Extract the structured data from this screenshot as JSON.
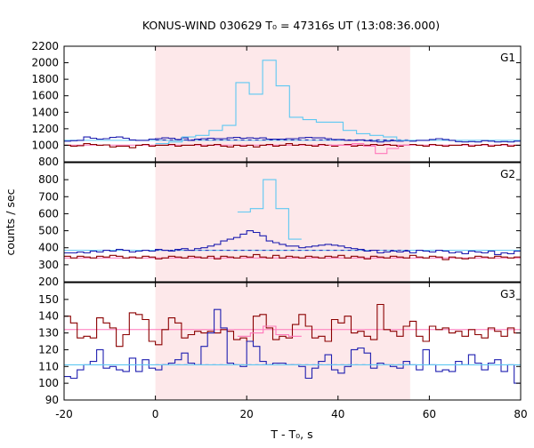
{
  "title": "KONUS-WIND 030629 T₀ = 47316s UT (13:08:36.000)",
  "ylabel": "counts / sec",
  "xlabel": "T - T₀, s",
  "colors": {
    "background_window": "#fde8ea",
    "dark_red": "#8b0000",
    "pink": "#ff77bb",
    "blue": "#1f1fb0",
    "light_blue": "#5ec8f2",
    "frame": "#000000"
  },
  "chart_data": [
    {
      "type": "line",
      "panel": "G1",
      "label": "G1",
      "xlim": [
        -20,
        80
      ],
      "ylim": [
        800,
        2200
      ],
      "yticks": [
        800,
        1000,
        1200,
        1400,
        1600,
        1800,
        2000,
        2200
      ],
      "xticks": [
        -20,
        0,
        20,
        40,
        60,
        80
      ],
      "shaded_x": [
        0,
        55.8
      ],
      "bin_width": 2.944,
      "background_levels": {
        "G1_G2": 1060,
        "G2_dashed": 1065,
        "G1": 1002
      },
      "series": [
        {
          "color": "blue",
          "values": [
            1050,
            1055,
            1060,
            1100,
            1085,
            1075,
            1080,
            1095,
            1100,
            1085,
            1065,
            1060,
            1060,
            1075,
            1080,
            1090,
            1085,
            1070,
            1090,
            1060,
            1075,
            1080,
            1085,
            1080,
            1080,
            1090,
            1095,
            1085,
            1090,
            1085,
            1090,
            1075,
            1075,
            1075,
            1080,
            1080,
            1090,
            1095,
            1090,
            1090,
            1080,
            1070,
            1070,
            1060,
            1060,
            1065,
            1055,
            1050,
            1040,
            1050,
            1055,
            1050,
            1055,
            1050,
            1060,
            1060,
            1070,
            1080,
            1070,
            1060,
            1045,
            1040,
            1045,
            1040,
            1055,
            1050,
            1040,
            1045,
            1040,
            1050
          ]
        },
        {
          "color": "light_blue",
          "x_start": 0,
          "x_end": 55.8,
          "values": [
            1020,
            1040,
            1100,
            1120,
            1180,
            1240,
            1760,
            1620,
            2030,
            1720,
            1340,
            1310,
            1280,
            1280,
            1180,
            1140,
            1120,
            1100,
            1060
          ]
        },
        {
          "color": "dark_red",
          "values": [
            1000,
            990,
            995,
            1020,
            1010,
            1000,
            1005,
            980,
            990,
            990,
            970,
            1000,
            1010,
            990,
            1000,
            1000,
            1010,
            990,
            1000,
            1000,
            1010,
            990,
            1000,
            1010,
            990,
            980,
            1000,
            990,
            1000,
            980,
            1000,
            1010,
            990,
            1000,
            1020,
            1000,
            1010,
            1000,
            990,
            1010,
            1000,
            990,
            1000,
            1010,
            990,
            1000,
            1000,
            1010,
            1000,
            1010,
            1000,
            990,
            1000,
            1010,
            1000,
            990,
            1010,
            1000,
            990,
            1000,
            1000,
            1010,
            990,
            1000,
            1010,
            990,
            1000,
            1010,
            990,
            1000
          ]
        },
        {
          "color": "pink",
          "x_start": 38,
          "x_end": 55.8,
          "values": [
            1000,
            1000,
            1020,
            990,
            900,
            960,
            1000
          ]
        }
      ]
    },
    {
      "type": "line",
      "panel": "G2",
      "label": "G2",
      "xlim": [
        -20,
        80
      ],
      "ylim": [
        200,
        900
      ],
      "yticks": [
        200,
        300,
        400,
        500,
        600,
        700,
        800
      ],
      "xticks": [
        -20,
        0,
        20,
        40,
        60,
        80
      ],
      "shaded_x": [
        0,
        55.8
      ],
      "bin_width": 2.944,
      "background_levels": {
        "blue_dashed": 385,
        "pink": 340
      },
      "series": [
        {
          "color": "blue",
          "values": [
            370,
            370,
            375,
            370,
            380,
            375,
            385,
            380,
            390,
            385,
            375,
            380,
            385,
            380,
            390,
            385,
            380,
            390,
            395,
            385,
            395,
            400,
            410,
            420,
            440,
            450,
            460,
            480,
            500,
            490,
            470,
            440,
            430,
            420,
            410,
            410,
            400,
            405,
            410,
            415,
            420,
            415,
            410,
            400,
            395,
            390,
            380,
            385,
            370,
            375,
            380,
            375,
            380,
            370,
            385,
            380,
            375,
            385,
            380,
            370,
            375,
            365,
            380,
            375,
            370,
            380,
            360,
            370,
            365,
            380
          ]
        },
        {
          "color": "light_blue",
          "x_start": 18,
          "x_end": 32,
          "values": [
            610,
            630,
            800,
            630,
            450
          ]
        },
        {
          "color": "dark_red",
          "values": [
            350,
            340,
            350,
            345,
            340,
            350,
            345,
            355,
            350,
            340,
            345,
            340,
            350,
            345,
            335,
            340,
            350,
            345,
            340,
            350,
            345,
            340,
            350,
            335,
            350,
            345,
            340,
            350,
            345,
            360,
            345,
            340,
            355,
            340,
            350,
            345,
            340,
            350,
            345,
            340,
            350,
            345,
            355,
            340,
            350,
            345,
            335,
            350,
            345,
            340,
            350,
            345,
            340,
            355,
            345,
            340,
            350,
            345,
            330,
            345,
            340,
            335,
            340,
            350,
            345,
            340,
            350,
            345,
            340,
            345
          ]
        }
      ]
    },
    {
      "type": "line",
      "panel": "G3",
      "label": "G3",
      "xlim": [
        -20,
        80
      ],
      "ylim": [
        90,
        160
      ],
      "yticks": [
        90,
        100,
        110,
        120,
        130,
        140,
        150
      ],
      "xticks": [
        -20,
        0,
        20,
        40,
        60,
        80
      ],
      "shaded_x": [
        0,
        55.8
      ],
      "bin_width": 2.944,
      "background_levels": {
        "dark_red": 132,
        "blue_dashed": 111
      },
      "series": [
        {
          "color": "dark_red",
          "values": [
            140,
            136,
            127,
            128,
            127,
            139,
            136,
            133,
            122,
            129,
            142,
            141,
            138,
            125,
            123,
            132,
            139,
            136,
            127,
            129,
            131,
            130,
            131,
            130,
            132,
            131,
            126,
            127,
            125,
            140,
            141,
            133,
            126,
            128,
            127,
            135,
            141,
            134,
            127,
            128,
            125,
            138,
            136,
            140,
            130,
            131,
            128,
            126,
            147,
            132,
            131,
            128,
            134,
            137,
            128,
            125,
            134,
            132,
            133,
            130,
            131,
            128,
            132,
            129,
            127,
            133,
            131,
            128,
            133,
            130
          ]
        },
        {
          "color": "blue",
          "values": [
            104,
            103,
            108,
            111,
            113,
            120,
            109,
            110,
            108,
            107,
            115,
            107,
            114,
            109,
            108,
            111,
            112,
            114,
            118,
            112,
            111,
            122,
            130,
            144,
            133,
            112,
            111,
            110,
            125,
            122,
            113,
            111,
            112,
            112,
            111,
            111,
            110,
            103,
            109,
            113,
            117,
            108,
            106,
            110,
            120,
            121,
            118,
            109,
            112,
            111,
            110,
            109,
            113,
            111,
            108,
            120,
            111,
            107,
            108,
            107,
            113,
            111,
            117,
            112,
            108,
            112,
            114,
            107,
            111,
            100
          ]
        },
        {
          "color": "light_blue",
          "values": [
            111,
            111,
            111,
            111,
            111,
            111,
            111,
            111,
            111,
            111,
            111,
            111,
            111,
            111,
            111,
            111,
            111,
            111,
            111,
            111,
            111,
            111,
            111,
            111,
            111,
            111,
            111,
            111,
            111,
            111,
            111,
            111,
            111,
            111,
            111,
            111,
            111,
            111,
            111,
            111,
            111,
            111,
            111,
            111,
            111,
            111,
            111,
            111,
            111,
            111,
            111,
            111,
            111,
            111,
            111,
            111,
            111,
            111,
            111,
            111,
            111,
            111,
            111,
            111,
            111,
            111,
            111,
            111,
            111,
            111
          ]
        },
        {
          "color": "pink",
          "x_start": 18,
          "x_end": 32,
          "values": [
            128,
            130,
            134,
            129,
            128
          ]
        }
      ]
    }
  ]
}
